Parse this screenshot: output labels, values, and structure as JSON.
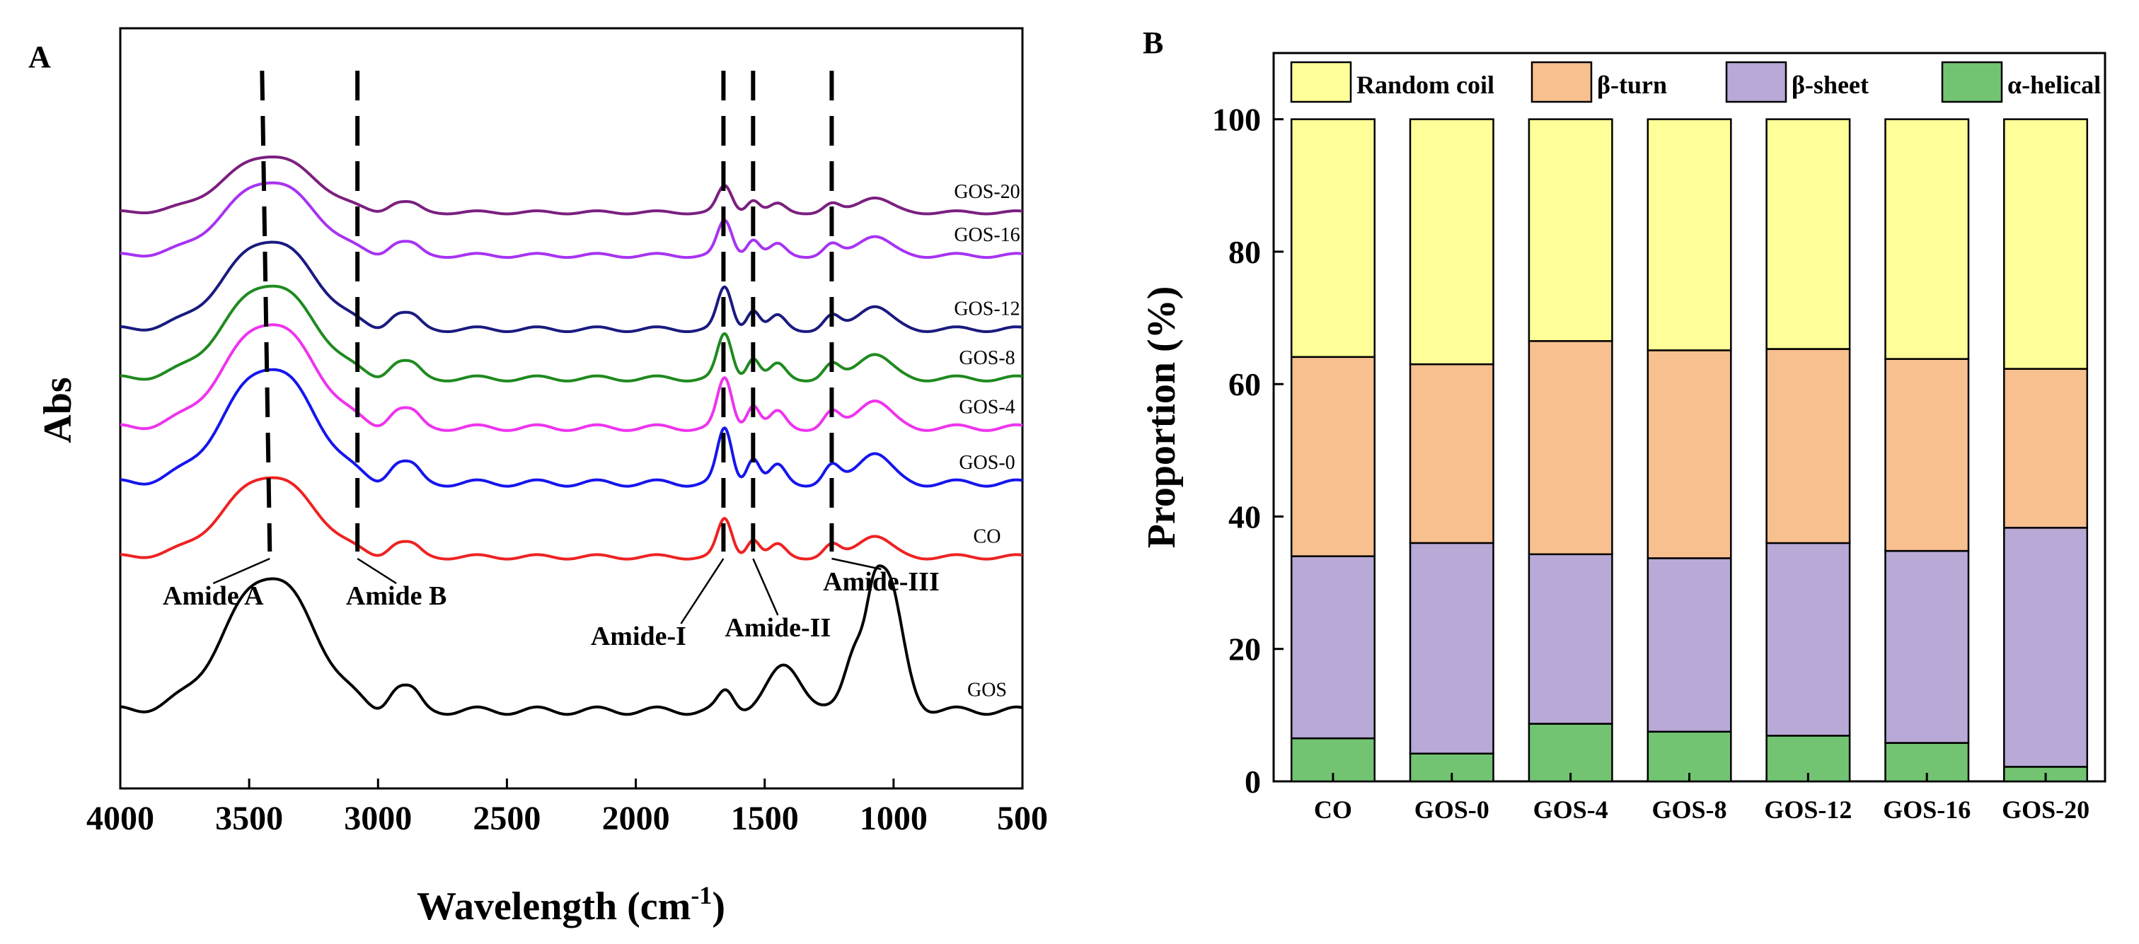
{
  "chart_data": [
    {
      "panel_label": "A",
      "type": "line",
      "title": "",
      "xlabel": "Wavelength (cm",
      "xlabel_sup": "-1",
      "xlabel_close": ")",
      "ylabel": "Abs",
      "xlim": [
        4000,
        500
      ],
      "xticks": [
        "4000",
        "3500",
        "3000",
        "2500",
        "2000",
        "1500",
        "1000",
        "500"
      ],
      "xtick_values": [
        4000,
        3500,
        3000,
        2500,
        2000,
        1500,
        1000,
        500
      ],
      "series": [
        {
          "name": "GOS-20",
          "color": "#7b1f7f",
          "offset": 0.81,
          "amp": 0.42
        },
        {
          "name": "GOS-16",
          "color": "#a733f2",
          "offset": 0.74,
          "amp": 0.55
        },
        {
          "name": "GOS-12",
          "color": "#1a1a80",
          "offset": 0.62,
          "amp": 0.66
        },
        {
          "name": "GOS-8",
          "color": "#1f8a1f",
          "offset": 0.54,
          "amp": 0.7
        },
        {
          "name": "GOS-4",
          "color": "#ee33ee",
          "offset": 0.46,
          "amp": 0.78
        },
        {
          "name": "GOS-0",
          "color": "#1515ee",
          "offset": 0.37,
          "amp": 0.86
        },
        {
          "name": "CO",
          "color": "#ee2222",
          "offset": 0.25,
          "amp": 0.6
        },
        {
          "name": "GOS",
          "color": "#000000",
          "offset": 0.0,
          "amp": 1.0
        }
      ],
      "peak_lines": [
        {
          "label": "Amide A",
          "x_top": 3450,
          "x_bottom": 3420
        },
        {
          "label": "Amide B",
          "x_top": 3080,
          "x_bottom": 3080
        },
        {
          "label": "Amide-I",
          "x_top": 1660,
          "x_bottom": 1660
        },
        {
          "label": "Amide-II",
          "x_top": 1545,
          "x_bottom": 1545
        },
        {
          "label": "Amide-III",
          "x_top": 1240,
          "x_bottom": 1240
        }
      ]
    },
    {
      "panel_label": "B",
      "type": "bar",
      "stacked": true,
      "title": "",
      "xlabel": "",
      "ylabel": "Proportion (%)",
      "ylim": [
        0,
        110
      ],
      "yticks": [
        "0",
        "20",
        "40",
        "60",
        "80",
        "100"
      ],
      "ytick_values": [
        0,
        20,
        40,
        60,
        80,
        100
      ],
      "categories": [
        "CO",
        "GOS-0",
        "GOS-4",
        "GOS-8",
        "GOS-12",
        "GOS-16",
        "GOS-20"
      ],
      "series": [
        {
          "name": "α-helical",
          "color": "#72c472",
          "values": [
            6.5,
            4.2,
            8.7,
            7.5,
            6.9,
            5.8,
            2.2
          ]
        },
        {
          "name": "β-sheet",
          "color": "#b8a9d6",
          "values": [
            27.5,
            31.8,
            25.6,
            26.2,
            29.1,
            29.0,
            36.1
          ]
        },
        {
          "name": "β-turn",
          "color": "#f8bf8f",
          "values": [
            30.1,
            27.0,
            32.2,
            31.4,
            29.3,
            29.0,
            24.0
          ]
        },
        {
          "name": "Random coil",
          "color": "#ffff99",
          "values": [
            35.9,
            37.0,
            33.5,
            34.9,
            34.7,
            36.2,
            37.7
          ]
        }
      ],
      "legend": [
        {
          "label": "Random coil",
          "color": "#ffff99"
        },
        {
          "label": "β-turn",
          "color": "#f8bf8f"
        },
        {
          "label": "β-sheet",
          "color": "#b8a9d6"
        },
        {
          "label": "α-helical",
          "color": "#72c472"
        }
      ]
    }
  ]
}
